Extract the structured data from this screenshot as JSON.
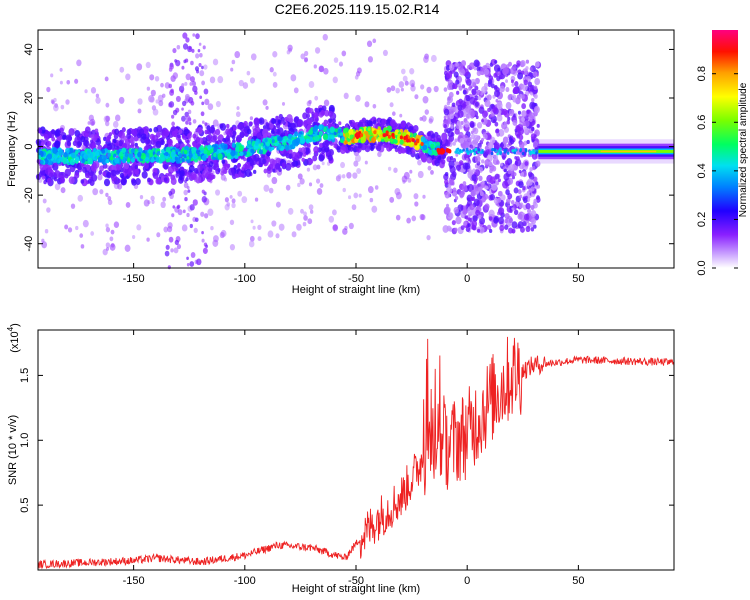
{
  "title": "C2E6.2025.119.15.02.R14",
  "chart_data": [
    {
      "type": "heatmap",
      "name": "spectrogram",
      "xlabel": "Height of straight line (km)",
      "ylabel": "Frequency (Hz)",
      "xlim": [
        -193,
        93
      ],
      "ylim": [
        -50,
        48
      ],
      "xticks": [
        -150,
        -100,
        -50,
        0,
        50
      ],
      "yticks": [
        -40,
        -20,
        0,
        20,
        40
      ],
      "colorbar": {
        "label": "Normalized spectral amplitude",
        "range": [
          0,
          0.98
        ],
        "ticks": [
          0.0,
          0.2,
          0.4,
          0.6,
          0.8
        ],
        "colormap": [
          "#ffffff",
          "#b070ff",
          "#7a00ff",
          "#0000ff",
          "#00d8ff",
          "#00ff00",
          "#ffff00",
          "#ff9900",
          "#ff0000",
          "#ff00aa"
        ]
      },
      "ridge": {
        "description_points_x": [
          -193,
          -150,
          -120,
          -100,
          -80,
          -65,
          -55,
          -45,
          -35,
          -25,
          -15,
          -8,
          0,
          32,
          93
        ],
        "center_freq_hz": [
          -4,
          -4,
          -3,
          -1,
          2,
          6,
          4,
          5,
          5,
          3,
          -1,
          -2,
          -2,
          -2,
          -2
        ]
      }
    },
    {
      "type": "line",
      "name": "snr",
      "xlabel": "Height of straight line (km)",
      "ylabel": "SNR (10 * v/v)",
      "y_multiplier": "(x10",
      "y_multiplier_exp": "4",
      "y_multiplier_close": ")",
      "xlim": [
        -193,
        93
      ],
      "ylim": [
        0,
        1.85
      ],
      "xticks": [
        -150,
        -100,
        -50,
        0,
        50
      ],
      "yticks": [
        0.5,
        1.0,
        1.5
      ],
      "ytick_labels": [
        "0.5",
        "1.0",
        "1.5"
      ],
      "color": "#ee2222",
      "envelope": {
        "x": [
          -193,
          -150,
          -140,
          -120,
          -100,
          -85,
          -70,
          -55,
          -45,
          -40,
          -30,
          -20,
          -15,
          -10,
          0,
          10,
          20,
          30,
          50,
          93
        ],
        "y": [
          0.03,
          0.06,
          0.08,
          0.05,
          0.1,
          0.18,
          0.16,
          0.08,
          0.3,
          0.4,
          0.55,
          0.85,
          1.05,
          0.95,
          1.05,
          1.3,
          1.5,
          1.58,
          1.62,
          1.6
        ]
      }
    }
  ]
}
